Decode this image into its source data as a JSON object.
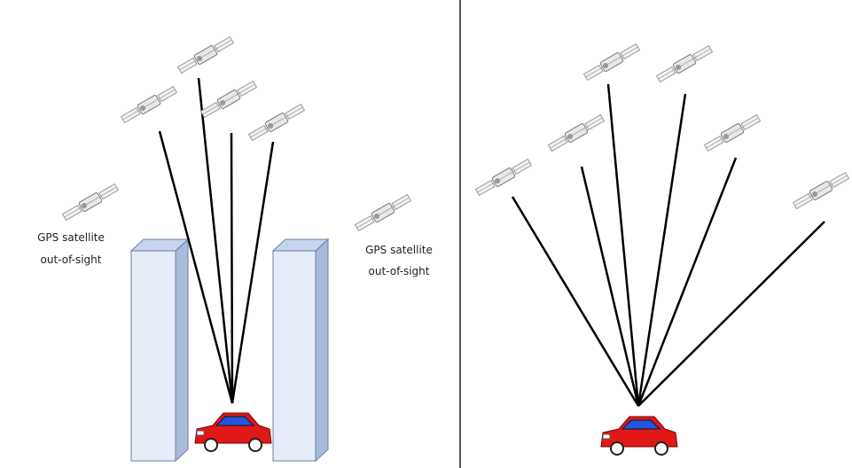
{
  "labels": [
    {
      "lines": [
        "GPS satellite",
        "out-of-sight"
      ]
    },
    {
      "lines": [
        "GPS satellite",
        "out-of-sight"
      ]
    }
  ]
}
